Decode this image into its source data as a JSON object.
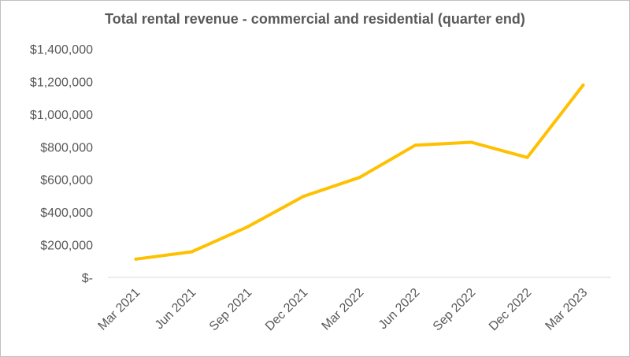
{
  "chart_data": {
    "type": "line",
    "title": "Total rental revenue - commercial and residential (quarter end)",
    "xlabel": "",
    "ylabel": "",
    "categories": [
      "Mar 2021",
      "Jun 2021",
      "Sep 2021",
      "Dec 2021",
      "Mar 2022",
      "Jun 2022",
      "Sep 2022",
      "Dec 2022",
      "Mar 2023"
    ],
    "series": [
      {
        "values": [
          112000,
          157000,
          310000,
          497000,
          612000,
          810000,
          828000,
          735000,
          1178000
        ]
      }
    ],
    "ylim": [
      0,
      1400000
    ],
    "yticks": [
      0,
      200000,
      400000,
      600000,
      800000,
      1000000,
      1200000,
      1400000
    ],
    "ytick_labels": [
      "$-",
      "$200,000",
      "$400,000",
      "$600,000",
      "$800,000",
      "$1,000,000",
      "$1,200,000",
      "$1,400,000"
    ],
    "grid": false,
    "legend": "none",
    "line_color": "#FFC000"
  }
}
